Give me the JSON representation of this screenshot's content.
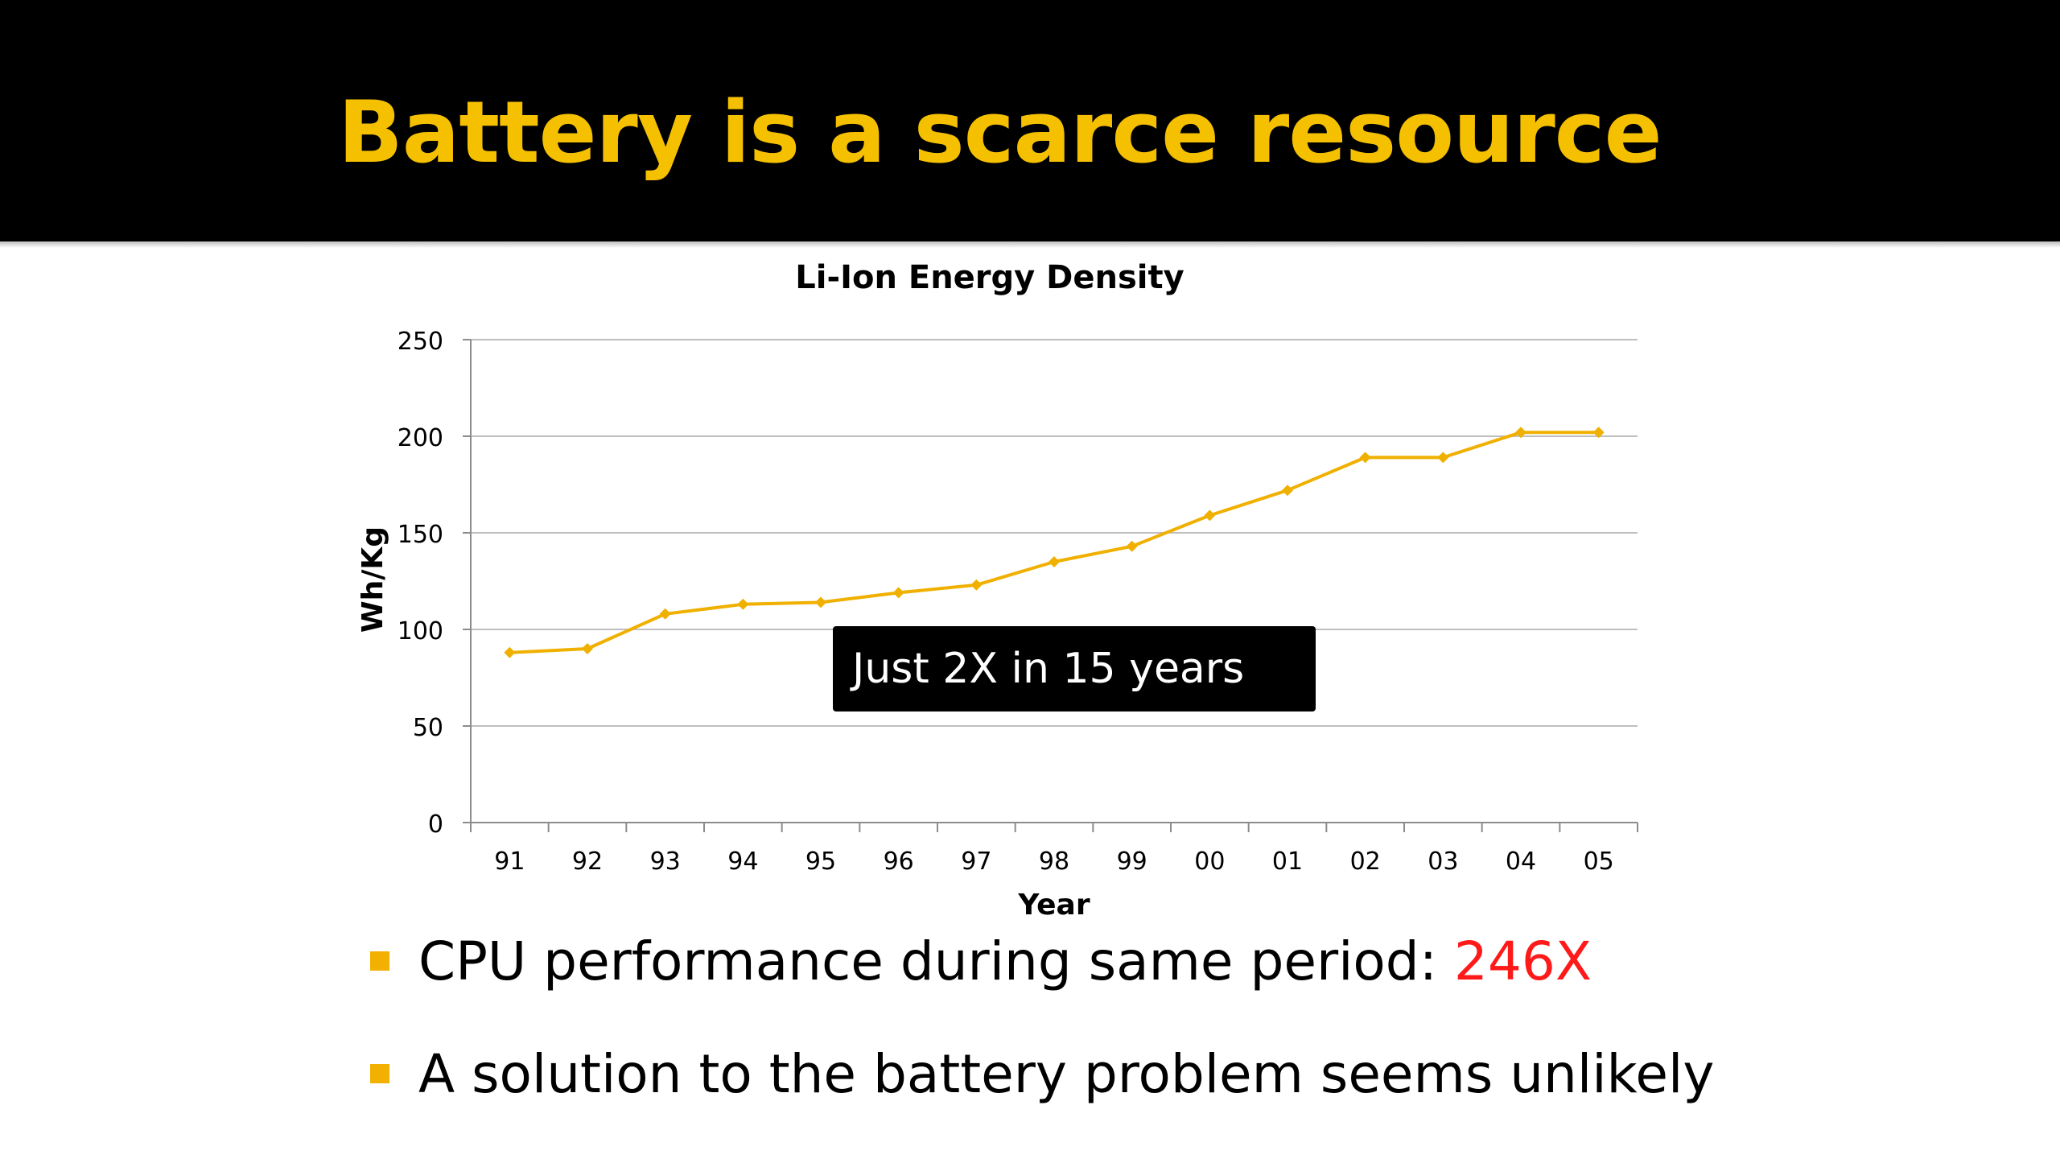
{
  "slide": {
    "title": "Battery is a scarce resource",
    "callout": "Just 2X in 15 years",
    "bullets": [
      {
        "text": "CPU performance during same period: ",
        "highlight": "246X"
      },
      {
        "text": "A solution to the battery problem seems unlikely",
        "highlight": ""
      }
    ]
  },
  "colors": {
    "title": "#f5c000",
    "series": "#f0b000",
    "bullet": "#f2b000",
    "highlight": "#ff1a1a",
    "grid": "#bfbfbf"
  },
  "chart_data": {
    "type": "line",
    "title": "Li-Ion Energy Density",
    "xlabel": "Year",
    "ylabel": "Wh/Kg",
    "categories": [
      "91",
      "92",
      "93",
      "94",
      "95",
      "96",
      "97",
      "98",
      "99",
      "00",
      "01",
      "02",
      "03",
      "04",
      "05"
    ],
    "series": [
      {
        "values": [
          88,
          90,
          108,
          113,
          114,
          119,
          123,
          135,
          143,
          159,
          172,
          189,
          189,
          202,
          202
        ]
      }
    ],
    "ylim": [
      0,
      250
    ],
    "yticks": [
      0,
      50,
      100,
      150,
      200,
      250
    ],
    "grid": true,
    "legend": "none"
  }
}
